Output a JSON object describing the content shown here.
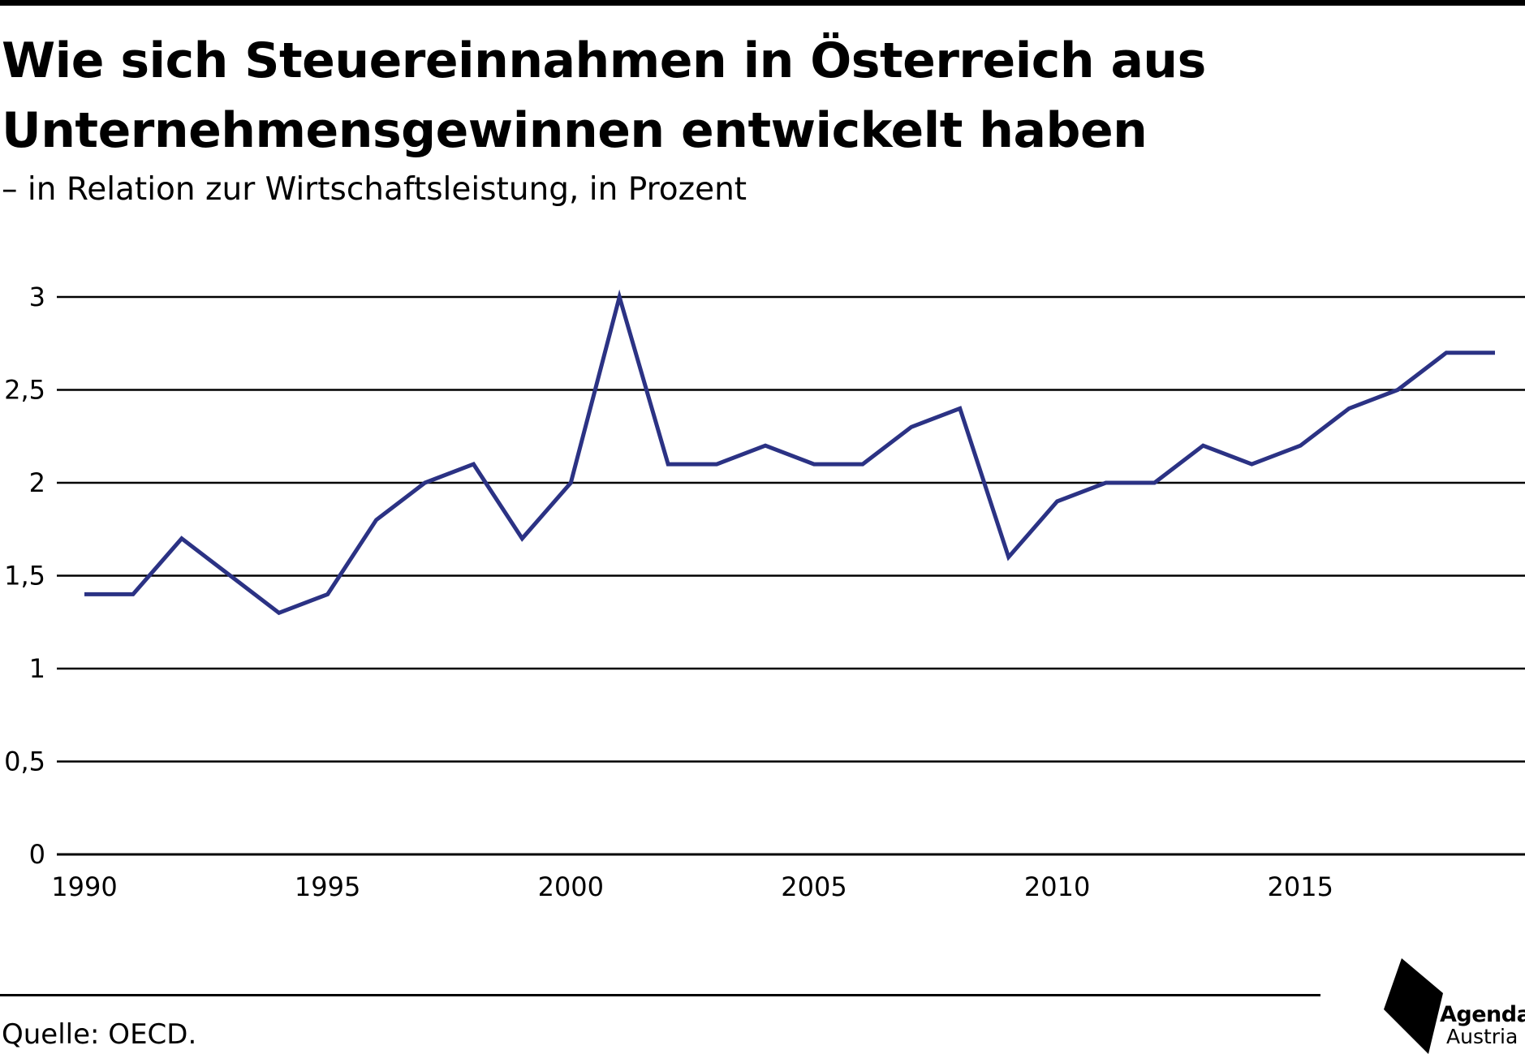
{
  "title_line1": "Wie sich Steuereinnahmen in Österreich aus",
  "title_line2": "Unternehmensgewinnen entwickelt haben",
  "subtitle": "– in Relation zur Wirtschaftsleistung, in Prozent",
  "source": "Quelle: OECD.",
  "logo": {
    "line1": "Agenda",
    "line2": "Austria"
  },
  "colors": {
    "line": "#2B3284",
    "grid": "#000000",
    "text": "#000000"
  },
  "chart_data": {
    "type": "line",
    "title": "Wie sich Steuereinnahmen in Österreich aus Unternehmensgewinnen entwickelt haben",
    "subtitle": "– in Relation zur Wirtschaftsleistung, in Prozent",
    "xlabel": "",
    "ylabel": "",
    "x": [
      1990,
      1991,
      1992,
      1993,
      1994,
      1995,
      1996,
      1997,
      1998,
      1999,
      2000,
      2001,
      2002,
      2003,
      2004,
      2005,
      2006,
      2007,
      2008,
      2009,
      2010,
      2011,
      2012,
      2013,
      2014,
      2015,
      2016,
      2017,
      2018,
      2019
    ],
    "series": [
      {
        "values": [
          1.4,
          1.4,
          1.7,
          1.5,
          1.3,
          1.4,
          1.8,
          2.0,
          2.1,
          1.7,
          2.0,
          3.0,
          2.1,
          2.1,
          2.2,
          2.1,
          2.1,
          2.3,
          2.4,
          1.6,
          1.9,
          2.0,
          2.0,
          2.2,
          2.1,
          2.2,
          2.4,
          2.5,
          2.7,
          2.7
        ]
      }
    ],
    "xlim": [
      1990,
      2019
    ],
    "ylim": [
      0,
      3
    ],
    "y_ticks": [
      {
        "value": 0,
        "label": "0"
      },
      {
        "value": 0.5,
        "label": "0,5"
      },
      {
        "value": 1,
        "label": "1"
      },
      {
        "value": 1.5,
        "label": "1,5"
      },
      {
        "value": 2,
        "label": "2"
      },
      {
        "value": 2.5,
        "label": "2,5"
      },
      {
        "value": 3,
        "label": "3"
      }
    ],
    "x_ticks": [
      {
        "value": 1990,
        "label": "1990"
      },
      {
        "value": 1995,
        "label": "1995"
      },
      {
        "value": 2000,
        "label": "2000"
      },
      {
        "value": 2005,
        "label": "2005"
      },
      {
        "value": 2010,
        "label": "2010"
      },
      {
        "value": 2015,
        "label": "2015"
      }
    ],
    "grid": true,
    "legend": "none"
  }
}
